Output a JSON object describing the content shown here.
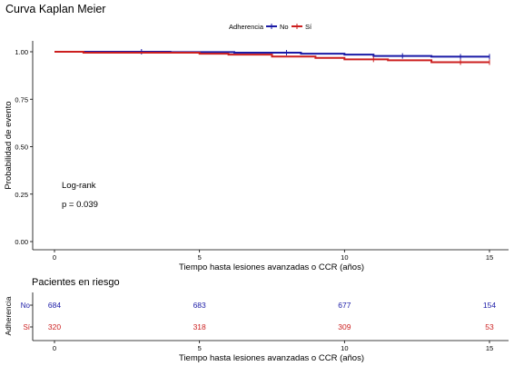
{
  "chart_data": [
    {
      "type": "line",
      "subtype": "step",
      "title": "Curva Kaplan Meier",
      "xlabel": "Tiempo hasta lesiones avanzadas o CCR (años)",
      "ylabel": "Probabilidad de evento",
      "xlim": [
        0,
        15
      ],
      "ylim": [
        0,
        1
      ],
      "x_ticks": [
        "0",
        "5",
        "10",
        "15"
      ],
      "y_ticks": [
        "0.00",
        "0.25",
        "0.50",
        "0.75",
        "1.00"
      ],
      "legend": {
        "title": "Adherencia",
        "position": "top"
      },
      "annotation_lines": [
        "Log-rank",
        "p = 0.039"
      ],
      "series": [
        {
          "name": "No",
          "color": "#1a1aa6",
          "points": [
            [
              0,
              1.0
            ],
            [
              4,
              1.0
            ],
            [
              4,
              0.998
            ],
            [
              6.2,
              0.998
            ],
            [
              6.2,
              0.995
            ],
            [
              8.5,
              0.995
            ],
            [
              8.5,
              0.99
            ],
            [
              10,
              0.99
            ],
            [
              10,
              0.985
            ],
            [
              11,
              0.985
            ],
            [
              11,
              0.978
            ],
            [
              13,
              0.978
            ],
            [
              13,
              0.974
            ],
            [
              15,
              0.974
            ]
          ],
          "censor_x": [
            3.0,
            8.0,
            12.0,
            14.0,
            15.0
          ]
        },
        {
          "name": "Sí",
          "color": "#cc1f1f",
          "points": [
            [
              0,
              1.0
            ],
            [
              1,
              1.0
            ],
            [
              1,
              0.995
            ],
            [
              5,
              0.995
            ],
            [
              5,
              0.99
            ],
            [
              6,
              0.99
            ],
            [
              6,
              0.985
            ],
            [
              7.5,
              0.985
            ],
            [
              7.5,
              0.975
            ],
            [
              9,
              0.975
            ],
            [
              9,
              0.968
            ],
            [
              10,
              0.968
            ],
            [
              10,
              0.96
            ],
            [
              11.5,
              0.96
            ],
            [
              11.5,
              0.955
            ],
            [
              13,
              0.955
            ],
            [
              13,
              0.945
            ],
            [
              15,
              0.945
            ]
          ],
          "censor_x": [
            11.0,
            14.0,
            15.0
          ]
        }
      ]
    },
    {
      "type": "table",
      "title": "Pacientes en riesgo",
      "ylabel": "Adherencia",
      "xlabel": "Tiempo hasta lesiones avanzadas o CCR (años)",
      "x": [
        0,
        5,
        10,
        15
      ],
      "x_ticks": [
        "0",
        "5",
        "10",
        "15"
      ],
      "rows": [
        {
          "name": "No",
          "color": "#1a1aa6",
          "values": [
            "684",
            "683",
            "677",
            "154"
          ]
        },
        {
          "name": "Sí",
          "color": "#cc1f1f",
          "values": [
            "320",
            "318",
            "309",
            "53"
          ]
        }
      ]
    }
  ]
}
